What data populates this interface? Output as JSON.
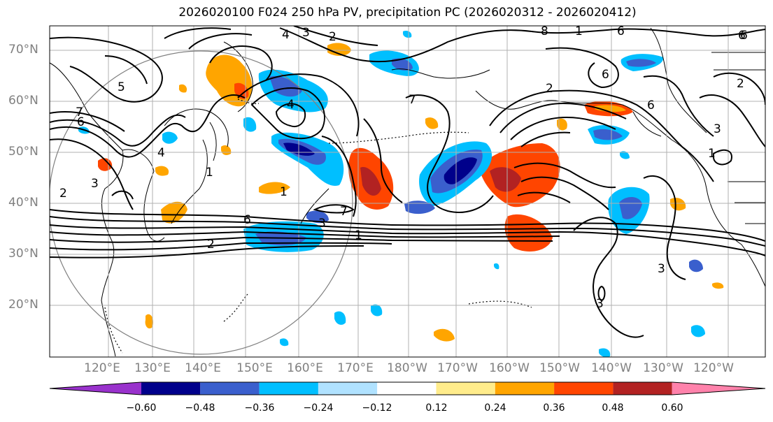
{
  "title": "2026020100 F024 250 hPa PV, precipitation PC (2026020312 - 2026020412)",
  "lat_labels": [
    "70°N",
    "60°N",
    "50°N",
    "40°N",
    "30°N",
    "20°N"
  ],
  "lon_labels": [
    "120°E",
    "130°E",
    "140°E",
    "150°E",
    "160°E",
    "170°E",
    "180°W",
    "170°W",
    "160°W",
    "150°W",
    "140°W",
    "130°W",
    "120°W"
  ],
  "colorbar": {
    "ticks": [
      "−0.60",
      "−0.48",
      "−0.36",
      "−0.24",
      "−0.12",
      "0.12",
      "0.24",
      "0.36",
      "0.48",
      "0.60"
    ],
    "colors": [
      "#9932CC",
      "#00008B",
      "#3A5FCD",
      "#00BFFF",
      "#B0E2FF",
      "#FFFFFF",
      "#FFEC8B",
      "#FFA500",
      "#FF4500",
      "#B22222",
      "#FF82AB"
    ]
  },
  "contour_labels": [
    "5",
    "4",
    "3",
    "2",
    "8",
    "1",
    "6",
    "7",
    "6",
    "7",
    "6",
    "2",
    "1",
    "6",
    "4",
    "2",
    "3",
    "6",
    "3",
    "1",
    "3",
    "2",
    "6",
    "7",
    "1",
    "3",
    "3",
    "4",
    "1",
    "2",
    "6"
  ]
}
